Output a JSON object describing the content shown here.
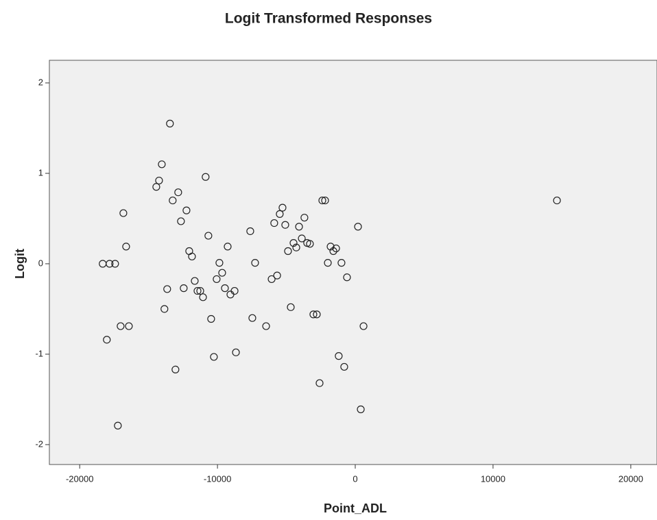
{
  "chart_data": {
    "type": "scatter",
    "title": "Logit Transformed Responses",
    "x_label": "Point_ADL",
    "y_label": "Logit",
    "xlim": [
      -22200,
      21900
    ],
    "ylim": [
      -2.22,
      2.25
    ],
    "xticks": [
      -20000,
      -10000,
      0,
      10000,
      20000
    ],
    "yticks": [
      -2,
      -1,
      0,
      1,
      2
    ],
    "color": "#222222",
    "background": "#f0f0f0",
    "x": [
      -13450,
      -14040,
      -14240,
      -14440,
      -10860,
      -12850,
      -13250,
      -12250,
      -12650,
      -16830,
      -16630,
      -10660,
      -12050,
      -11850,
      -18330,
      -17830,
      -17430,
      -9260,
      -9860,
      -9660,
      -10060,
      -11650,
      -12450,
      -13650,
      -11450,
      -11250,
      -11050,
      -9460,
      -9060,
      -8760,
      -13850,
      -17030,
      -16430,
      -18030,
      -10460,
      -10260,
      -8660,
      -13050,
      -17230,
      -7620,
      -7270,
      -7470,
      -6470,
      -6070,
      -5670,
      -5880,
      -5480,
      -5280,
      -5080,
      -4880,
      -4480,
      -4280,
      -4080,
      -3690,
      -3880,
      -3490,
      -3290,
      -4680,
      -3040,
      -2790,
      -2390,
      -2190,
      -1990,
      -1790,
      -1590,
      -1390,
      -1000,
      -600,
      -1200,
      -800,
      -2590,
      200,
      600,
      400,
      14640
    ],
    "values": [
      1.55,
      1.1,
      0.92,
      0.85,
      0.96,
      0.79,
      0.7,
      0.59,
      0.47,
      0.56,
      0.19,
      0.31,
      0.14,
      0.08,
      0,
      0,
      0,
      0.19,
      0.01,
      -0.1,
      -0.17,
      -0.19,
      -0.27,
      -0.28,
      -0.3,
      -0.3,
      -0.37,
      -0.27,
      -0.34,
      -0.3,
      -0.5,
      -0.69,
      -0.69,
      -0.84,
      -0.61,
      -1.03,
      -0.98,
      -1.17,
      -1.79,
      0.36,
      0.01,
      -0.6,
      -0.69,
      -0.17,
      -0.13,
      0.45,
      0.55,
      0.62,
      0.43,
      0.14,
      0.23,
      0.18,
      0.41,
      0.51,
      0.28,
      0.23,
      0.22,
      -0.48,
      -0.56,
      -0.56,
      0.7,
      0.7,
      0.01,
      0.19,
      0.14,
      0.17,
      0.01,
      -0.15,
      -1.02,
      -1.14,
      -1.32,
      0.41,
      -0.69,
      -1.61,
      0.7
    ]
  }
}
